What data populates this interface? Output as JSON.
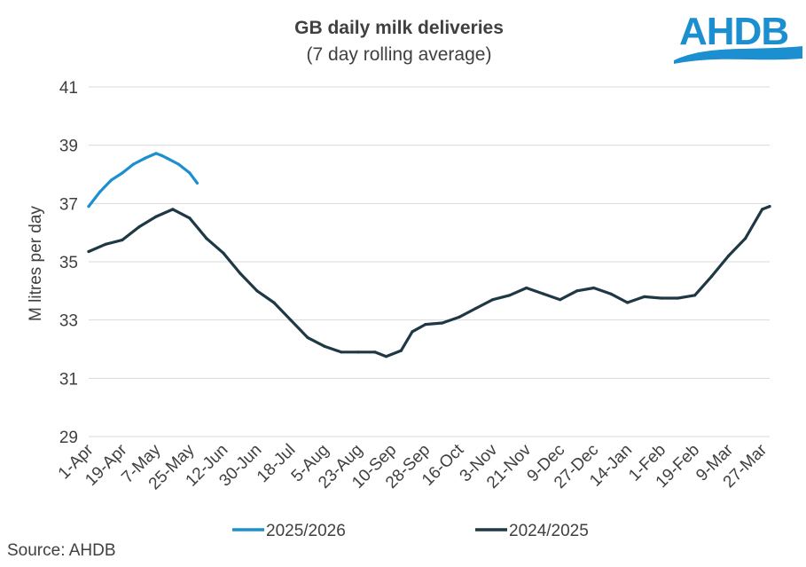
{
  "chart_data": {
    "type": "line",
    "title": "GB daily milk deliveries",
    "subtitle": "(7 day rolling average)",
    "ylabel": "M litres per day",
    "xlabel": "",
    "ylim": [
      29,
      41
    ],
    "yticks": [
      29,
      31,
      33,
      35,
      37,
      39,
      41
    ],
    "grid": true,
    "legend_position": "bottom",
    "x_tick_labels": [
      "1-Apr",
      "19-Apr",
      "7-May",
      "25-May",
      "12-Jun",
      "30-Jun",
      "18-Jul",
      "5-Aug",
      "23-Aug",
      "10-Sep",
      "28-Sep",
      "16-Oct",
      "3-Nov",
      "21-Nov",
      "9-Dec",
      "27-Dec",
      "14-Jan",
      "1-Feb",
      "19-Feb",
      "9-Mar",
      "27-Mar"
    ],
    "x_start": "1-Apr",
    "x_end": "31-Mar",
    "series": [
      {
        "name": "2025/2026",
        "color": "#1b8fd0",
        "x": [
          "1-Apr",
          "7-Apr",
          "13-Apr",
          "19-Apr",
          "25-Apr",
          "1-May",
          "7-May",
          "10-May",
          "13-May",
          "19-May",
          "25-May",
          "29-May"
        ],
        "values": [
          36.9,
          37.4,
          37.8,
          38.05,
          38.35,
          38.55,
          38.72,
          38.65,
          38.55,
          38.35,
          38.05,
          37.7
        ]
      },
      {
        "name": "2024/2025",
        "color": "#1f3845",
        "x": [
          "1-Apr",
          "10-Apr",
          "19-Apr",
          "28-Apr",
          "7-May",
          "16-May",
          "25-May",
          "3-Jun",
          "12-Jun",
          "21-Jun",
          "30-Jun",
          "9-Jul",
          "18-Jul",
          "27-Jul",
          "5-Aug",
          "14-Aug",
          "23-Aug",
          "1-Sep",
          "7-Sep",
          "15-Sep",
          "21-Sep",
          "28-Sep",
          "7-Oct",
          "16-Oct",
          "25-Oct",
          "3-Nov",
          "12-Nov",
          "21-Nov",
          "30-Nov",
          "9-Dec",
          "18-Dec",
          "27-Dec",
          "5-Jan",
          "14-Jan",
          "23-Jan",
          "1-Feb",
          "10-Feb",
          "19-Feb",
          "28-Feb",
          "9-Mar",
          "18-Mar",
          "27-Mar",
          "31-Mar"
        ],
        "values": [
          35.35,
          35.6,
          35.75,
          36.2,
          36.55,
          36.8,
          36.5,
          35.8,
          35.3,
          34.6,
          34.0,
          33.6,
          33.0,
          32.4,
          32.1,
          31.9,
          31.9,
          31.9,
          31.75,
          31.95,
          32.6,
          32.85,
          32.9,
          33.1,
          33.4,
          33.7,
          33.85,
          34.1,
          33.9,
          33.7,
          34.0,
          34.1,
          33.9,
          33.6,
          33.8,
          33.75,
          33.75,
          33.85,
          34.5,
          35.2,
          35.8,
          36.8,
          36.9
        ]
      }
    ]
  },
  "logo": {
    "text": "AHDB",
    "color": "#1b8fd0"
  },
  "source": "Source: AHDB"
}
